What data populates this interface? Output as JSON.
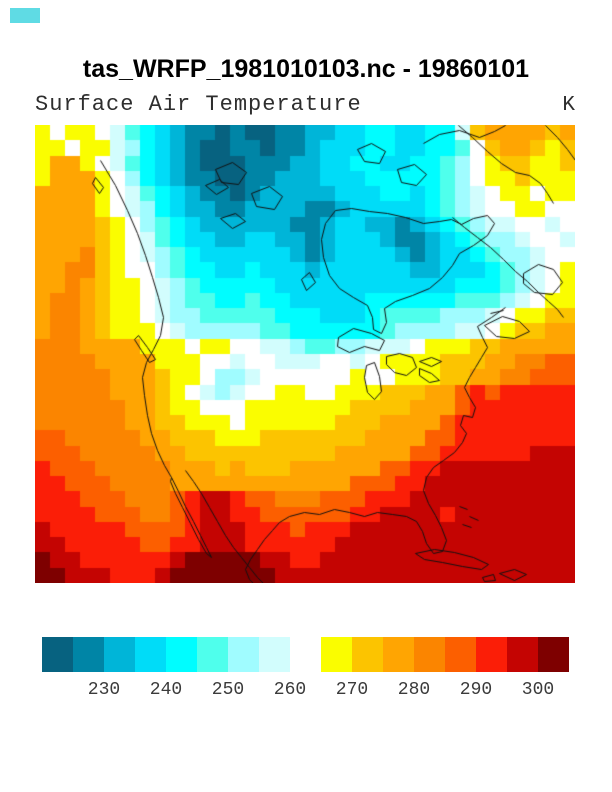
{
  "header": {
    "title": "tas_WRFP_1981010103.nc - 19860101"
  },
  "plot": {
    "subtitle": "Surface Air Temperature",
    "units_label": "K"
  },
  "decoration": {
    "corner_marker_color": "#5fdbe4"
  },
  "chart_data": {
    "type": "heatmap",
    "title": "tas_WRFP_1981010103.nc - 19860101",
    "subtitle": "Surface Air Temperature",
    "units": "K",
    "levels_k": {
      "min": 220,
      "max": 305,
      "step": 5
    },
    "colorbar_ticks": [
      230,
      240,
      250,
      260,
      270,
      280,
      290,
      300
    ],
    "white_level_range": [
      260,
      265
    ],
    "palette": [
      "#076280",
      "#0085a6",
      "#00b5d8",
      "#00dcf8",
      "#00fdff",
      "#4fffec",
      "#a0fcff",
      "#d2fdfd",
      "#ffffff",
      "#fafd00",
      "#fcc400",
      "#ffa502",
      "#fb8500",
      "#fc5f00",
      "#fb1e07",
      "#c40402",
      "#7e0000"
    ],
    "coastline_color": "#111111",
    "grid": {
      "cols": 36,
      "rows": 30,
      "cell_keys": "0123456789abcdefg",
      "cells": [
        "98998754321101001122334433447abbbbab",
        "998997643210011011233344334458abba9a",
        "9bb9875432100011122334433445689aa99a",
        "9bbb9864321100112223334444456899a999",
        "bbbb98754321101222223334434567899899",
        "bbbb98764322112222112333334567889988",
        "bbbba9865432222221123322123456778878",
        "bbbba9875433223322123332112345667887",
        "bbbca9876543333332123333212334566788",
        "bbcca9886544334333233333322333456789",
        "bbcba9987654444433333333333344456789",
        "bccba9987655445443333344444455567899",
        "bccba99876655555444333455556667899aa",
        "bccba999876666655444444566667789aabb",
        "cccbbbb9998998877655667778999aabbbbb",
        "ccccbbbb9998878877788789999aaabbccdd",
        "cccccbbba998667888888988999aabbccddd",
        "cccccbbba98767889988999aaabbdedeeeee",
        "ccccccbba998889999999aaaabbbdeeeeeee",
        "ccccccbbaa9998999999aaabbbbdeeeeeeee",
        "ddcccccbbaaa999aaaaaaabbbbddeeeeeeee",
        "dddcccccbbaaaaaaaaaabbbbbddeeeeeefff",
        "edddcccccbbbabaaabbbbbbddeefffffffff",
        "eedddccccbbbbbbbbbbbbdddeeffffffffff",
        "eeedddcccdeffeddcccdddeeefffffffffff",
        "eeeedddccdeffeeddddddeeffffeffffffff",
        "feeeeeddddefffeeedeeefffffffffffffff",
        "ffeeeeeddeefffeeeeeeffffffffffffffff",
        "gffeeeeeefgggggffeeffffffffffffffff f",
        "ggfffeeefgggggggffffffffffffffffffff"
      ]
    },
    "coastlines": [
      [
        [
          65,
          35
        ],
        [
          80,
          60
        ],
        [
          92,
          85
        ],
        [
          102,
          108
        ],
        [
          110,
          130
        ],
        [
          117,
          152
        ],
        [
          123,
          172
        ],
        [
          128,
          192
        ],
        [
          125,
          210
        ],
        [
          118,
          224
        ],
        [
          111,
          237
        ],
        [
          107,
          252
        ],
        [
          109,
          270
        ],
        [
          112,
          290
        ],
        [
          116,
          308
        ],
        [
          122,
          325
        ],
        [
          129,
          340
        ],
        [
          136,
          352
        ]
      ],
      [
        [
          136,
          352
        ],
        [
          143,
          366
        ],
        [
          150,
          381
        ],
        [
          158,
          396
        ],
        [
          165,
          410
        ],
        [
          171,
          422
        ],
        [
          176,
          432
        ],
        [
          171,
          428
        ],
        [
          163,
          414
        ],
        [
          155,
          398
        ],
        [
          147,
          382
        ],
        [
          140,
          368
        ],
        [
          135,
          356
        ],
        [
          136,
          352
        ]
      ],
      [
        [
          150,
          345
        ],
        [
          158,
          356
        ],
        [
          166,
          368
        ],
        [
          174,
          382
        ],
        [
          182,
          396
        ],
        [
          190,
          410
        ],
        [
          198,
          422
        ],
        [
          206,
          432
        ],
        [
          214,
          442
        ],
        [
          222,
          452
        ],
        [
          228,
          458
        ]
      ],
      [
        [
          300,
          85
        ],
        [
          290,
          98
        ],
        [
          286,
          114
        ],
        [
          288,
          132
        ],
        [
          294,
          150
        ],
        [
          304,
          163
        ],
        [
          318,
          172
        ],
        [
          332,
          180
        ],
        [
          337,
          192
        ],
        [
          338,
          204
        ],
        [
          346,
          208
        ],
        [
          351,
          197
        ],
        [
          349,
          183
        ],
        [
          360,
          176
        ],
        [
          377,
          170
        ],
        [
          394,
          163
        ],
        [
          407,
          152
        ],
        [
          417,
          140
        ],
        [
          424,
          128
        ],
        [
          438,
          120
        ],
        [
          452,
          110
        ],
        [
          459,
          98
        ],
        [
          452,
          90
        ],
        [
          438,
          93
        ],
        [
          426,
          99
        ],
        [
          416,
          94
        ],
        [
          404,
          96
        ],
        [
          388,
          98
        ],
        [
          370,
          92
        ],
        [
          352,
          88
        ],
        [
          334,
          86
        ],
        [
          316,
          83
        ],
        [
          300,
          85
        ]
      ],
      [
        [
          322,
          24
        ],
        [
          336,
          18
        ],
        [
          350,
          26
        ],
        [
          344,
          38
        ],
        [
          329,
          36
        ],
        [
          322,
          24
        ]
      ],
      [
        [
          362,
          44
        ],
        [
          379,
          39
        ],
        [
          391,
          49
        ],
        [
          381,
          60
        ],
        [
          366,
          57
        ],
        [
          362,
          44
        ]
      ],
      [
        [
          388,
          18
        ],
        [
          404,
          9
        ],
        [
          424,
          5
        ],
        [
          444,
          12
        ],
        [
          459,
          6
        ],
        [
          470,
          0
        ]
      ],
      [
        [
          180,
          44
        ],
        [
          197,
          37
        ],
        [
          211,
          47
        ],
        [
          203,
          59
        ],
        [
          186,
          57
        ],
        [
          180,
          44
        ]
      ],
      [
        [
          216,
          68
        ],
        [
          234,
          61
        ],
        [
          247,
          71
        ],
        [
          239,
          84
        ],
        [
          221,
          81
        ],
        [
          216,
          68
        ]
      ],
      [
        [
          423,
          0
        ],
        [
          437,
          12
        ],
        [
          452,
          26
        ],
        [
          466,
          38
        ],
        [
          480,
          47
        ],
        [
          494,
          50
        ],
        [
          505,
          58
        ],
        [
          512,
          68
        ],
        [
          518,
          78
        ]
      ],
      [
        [
          510,
          0
        ],
        [
          522,
          12
        ],
        [
          532,
          24
        ],
        [
          540,
          35
        ]
      ],
      [
        [
          417,
          92
        ],
        [
          429,
          102
        ],
        [
          442,
          112
        ],
        [
          455,
          122
        ],
        [
          468,
          134
        ],
        [
          480,
          146
        ],
        [
          492,
          156
        ],
        [
          503,
          167
        ],
        [
          513,
          176
        ],
        [
          522,
          184
        ],
        [
          528,
          192
        ]
      ],
      [
        [
          488,
          148
        ],
        [
          503,
          139
        ],
        [
          518,
          144
        ],
        [
          527,
          157
        ],
        [
          517,
          169
        ],
        [
          499,
          167
        ],
        [
          488,
          158
        ],
        [
          488,
          148
        ]
      ],
      [
        [
          470,
          182
        ],
        [
          456,
          192
        ],
        [
          442,
          201
        ]
      ],
      [
        [
          449,
          200
        ],
        [
          467,
          191
        ],
        [
          484,
          196
        ],
        [
          494,
          206
        ],
        [
          479,
          213
        ],
        [
          461,
          211
        ],
        [
          449,
          200
        ]
      ],
      [
        [
          455,
          188
        ],
        [
          468,
          185
        ]
      ],
      [
        [
          442,
          201
        ],
        [
          447,
          212
        ],
        [
          452,
          222
        ],
        [
          446,
          232
        ],
        [
          440,
          242
        ],
        [
          434,
          252
        ],
        [
          429,
          262
        ],
        [
          434,
          272
        ],
        [
          440,
          282
        ],
        [
          437,
          292
        ],
        [
          428,
          290
        ],
        [
          425,
          300
        ],
        [
          431,
          308
        ],
        [
          427,
          317
        ],
        [
          419,
          327
        ],
        [
          408,
          335
        ],
        [
          398,
          342
        ],
        [
          391,
          352
        ],
        [
          388,
          365
        ],
        [
          393,
          378
        ],
        [
          400,
          390
        ],
        [
          406,
          402
        ],
        [
          411,
          415
        ],
        [
          407,
          426
        ],
        [
          398,
          428
        ],
        [
          391,
          418
        ],
        [
          387,
          406
        ],
        [
          381,
          396
        ],
        [
          371,
          391
        ],
        [
          357,
          389
        ],
        [
          342,
          387
        ],
        [
          329,
          391
        ],
        [
          314,
          387
        ],
        [
          299,
          384
        ],
        [
          284,
          389
        ],
        [
          269,
          387
        ],
        [
          254,
          391
        ],
        [
          244,
          397
        ],
        [
          237,
          405
        ],
        [
          229,
          414
        ],
        [
          222,
          424
        ],
        [
          215,
          434
        ],
        [
          210,
          444
        ],
        [
          214,
          454
        ],
        [
          218,
          458
        ]
      ],
      [
        [
          303,
          212
        ],
        [
          318,
          203
        ],
        [
          336,
          208
        ],
        [
          349,
          215
        ],
        [
          344,
          225
        ],
        [
          329,
          221
        ],
        [
          314,
          227
        ],
        [
          302,
          221
        ],
        [
          303,
          212
        ]
      ],
      [
        [
          331,
          240
        ],
        [
          339,
          237
        ],
        [
          344,
          251
        ],
        [
          346,
          266
        ],
        [
          339,
          274
        ],
        [
          332,
          267
        ],
        [
          329,
          252
        ],
        [
          331,
          240
        ]
      ],
      [
        [
          351,
          231
        ],
        [
          364,
          228
        ],
        [
          377,
          232
        ],
        [
          381,
          242
        ],
        [
          371,
          250
        ],
        [
          359,
          247
        ],
        [
          351,
          239
        ],
        [
          351,
          231
        ]
      ],
      [
        [
          384,
          243
        ],
        [
          396,
          248
        ],
        [
          404,
          255
        ],
        [
          394,
          257
        ],
        [
          384,
          250
        ],
        [
          384,
          243
        ]
      ],
      [
        [
          384,
          236
        ],
        [
          396,
          232
        ],
        [
          406,
          236
        ],
        [
          396,
          241
        ],
        [
          384,
          236
        ]
      ],
      [
        [
          380,
          428
        ],
        [
          399,
          424
        ],
        [
          419,
          427
        ],
        [
          438,
          432
        ],
        [
          453,
          439
        ],
        [
          446,
          444
        ],
        [
          427,
          441
        ],
        [
          407,
          437
        ],
        [
          389,
          434
        ],
        [
          380,
          428
        ]
      ],
      [
        [
          464,
          448
        ],
        [
          479,
          444
        ],
        [
          491,
          449
        ],
        [
          479,
          455
        ],
        [
          464,
          448
        ]
      ],
      [
        [
          447,
          452
        ],
        [
          458,
          449
        ],
        [
          460,
          455
        ],
        [
          449,
          456
        ],
        [
          447,
          452
        ]
      ],
      [
        [
          424,
          381
        ],
        [
          432,
          384
        ]
      ],
      [
        [
          434,
          391
        ],
        [
          443,
          395
        ]
      ],
      [
        [
          427,
          399
        ],
        [
          436,
          402
        ]
      ],
      [
        [
          103,
          210
        ],
        [
          112,
          222
        ],
        [
          120,
          234
        ],
        [
          114,
          237
        ],
        [
          106,
          225
        ],
        [
          99,
          214
        ],
        [
          103,
          210
        ]
      ],
      [
        [
          60,
          52
        ],
        [
          68,
          62
        ],
        [
          64,
          68
        ],
        [
          57,
          58
        ],
        [
          60,
          52
        ]
      ],
      [
        [
          185,
          93
        ],
        [
          200,
          88
        ],
        [
          210,
          96
        ],
        [
          197,
          103
        ],
        [
          185,
          93
        ]
      ],
      [
        [
          170,
          60
        ],
        [
          184,
          54
        ],
        [
          193,
          62
        ],
        [
          181,
          69
        ],
        [
          170,
          60
        ]
      ],
      [
        [
          266,
          154
        ],
        [
          274,
          147
        ],
        [
          280,
          157
        ],
        [
          271,
          165
        ],
        [
          266,
          154
        ]
      ]
    ]
  }
}
